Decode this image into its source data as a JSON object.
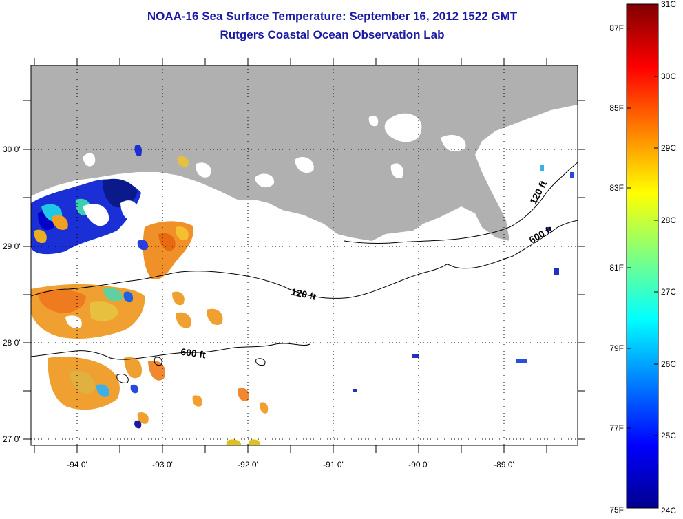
{
  "title": {
    "line1": "NOAA-16 Sea Surface Temperature:  September 16, 2012 1522 GMT",
    "line2": "Rutgers Coastal Ocean Observation Lab"
  },
  "map": {
    "lat_labels": [
      "30 0'",
      "29 0'",
      "28 0'",
      "27 0'"
    ],
    "lon_labels": [
      "-94 0'",
      "-93 0'",
      "-92 0'",
      "-91 0'",
      "-90 0'",
      "-89 0'"
    ],
    "isobath_labels": [
      {
        "text": "120 ft"
      },
      {
        "text": "600 ft"
      },
      {
        "text": "120 ft"
      },
      {
        "text": "600 ft"
      }
    ],
    "colors": {
      "land": "#b0b0b0",
      "ocean": "#ffffff",
      "grid": "#000000"
    }
  },
  "colorbar": {
    "celsius": [
      "31C",
      "30C",
      "29C",
      "28C",
      "27C",
      "26C",
      "25C",
      "24C"
    ],
    "fahrenheit": [
      "87F",
      "85F",
      "83F",
      "81F",
      "79F",
      "77F",
      "75F"
    ],
    "range_c": [
      24,
      31
    ],
    "colormap": "jet"
  }
}
